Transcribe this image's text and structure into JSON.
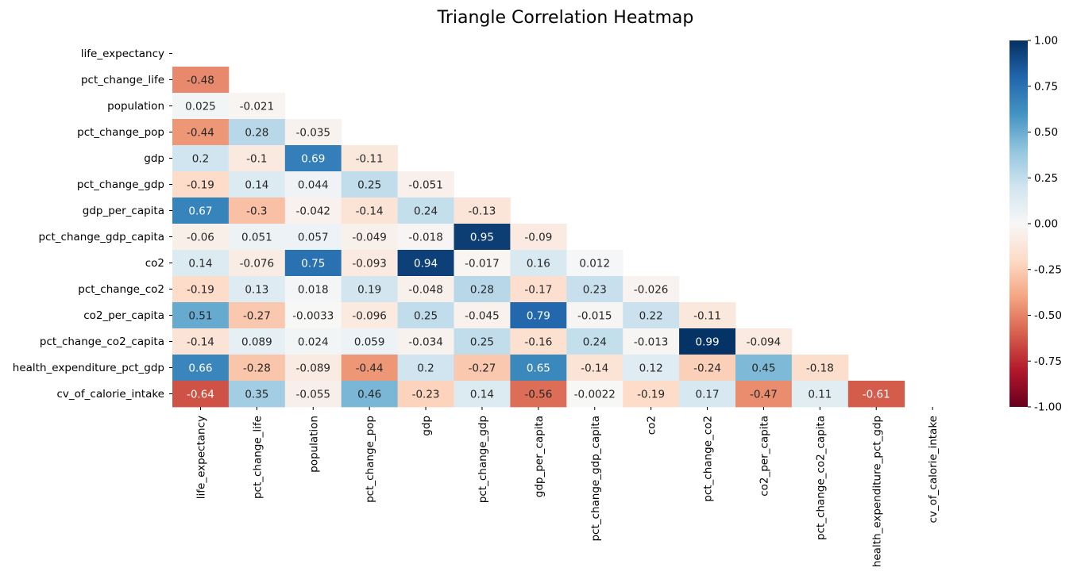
{
  "chart_data": {
    "type": "heatmap",
    "title": "Triangle Correlation Heatmap",
    "variables": [
      "life_expectancy",
      "pct_change_life",
      "population",
      "pct_change_pop",
      "gdp",
      "pct_change_gdp",
      "gdp_per_capita",
      "pct_change_gdp_capita",
      "co2",
      "pct_change_co2",
      "co2_per_capita",
      "pct_change_co2_capita",
      "health_expenditure_pct_gdp",
      "cv_of_calorie_intake"
    ],
    "lower_triangle": [
      [],
      [
        "-0.48"
      ],
      [
        "0.025",
        "-0.021"
      ],
      [
        "-0.44",
        "0.28",
        "-0.035"
      ],
      [
        "0.2",
        "-0.1",
        "0.69",
        "-0.11"
      ],
      [
        "-0.19",
        "0.14",
        "0.044",
        "0.25",
        "-0.051"
      ],
      [
        "0.67",
        "-0.3",
        "-0.042",
        "-0.14",
        "0.24",
        "-0.13"
      ],
      [
        "-0.06",
        "0.051",
        "0.057",
        "-0.049",
        "-0.018",
        "0.95",
        "-0.09"
      ],
      [
        "0.14",
        "-0.076",
        "0.75",
        "-0.093",
        "0.94",
        "-0.017",
        "0.16",
        "0.012"
      ],
      [
        "-0.19",
        "0.13",
        "0.018",
        "0.19",
        "-0.048",
        "0.28",
        "-0.17",
        "0.23",
        "-0.026"
      ],
      [
        "0.51",
        "-0.27",
        "-0.0033",
        "-0.096",
        "0.25",
        "-0.045",
        "0.79",
        "-0.015",
        "0.22",
        "-0.11"
      ],
      [
        "-0.14",
        "0.089",
        "0.024",
        "0.059",
        "-0.034",
        "0.25",
        "-0.16",
        "0.24",
        "-0.013",
        "0.99",
        "-0.094"
      ],
      [
        "0.66",
        "-0.28",
        "-0.089",
        "-0.44",
        "0.2",
        "-0.27",
        "0.65",
        "-0.14",
        "0.12",
        "-0.24",
        "0.45",
        "-0.18"
      ],
      [
        "-0.64",
        "0.35",
        "-0.055",
        "0.46",
        "-0.23",
        "0.14",
        "-0.56",
        "-0.0022",
        "-0.19",
        "0.17",
        "-0.47",
        "0.11",
        "-0.61"
      ]
    ],
    "colorbar": {
      "range": [
        -1.0,
        1.0
      ],
      "ticks": [
        "1.00",
        "0.75",
        "0.50",
        "0.25",
        "0.00",
        "-0.25",
        "-0.50",
        "-0.75",
        "-1.00"
      ],
      "tick_values": [
        1.0,
        0.75,
        0.5,
        0.25,
        0.0,
        -0.25,
        -0.5,
        -0.75,
        -1.0
      ],
      "colormap": "RdBu",
      "stops": [
        "#67001f",
        "#b2182b",
        "#d6604d",
        "#f4a582",
        "#fddbc7",
        "#f7f7f7",
        "#d1e5f0",
        "#92c5de",
        "#4393c3",
        "#2166ac",
        "#053061"
      ]
    },
    "annotations": true,
    "mask": "upper-triangle-including-diagonal"
  }
}
